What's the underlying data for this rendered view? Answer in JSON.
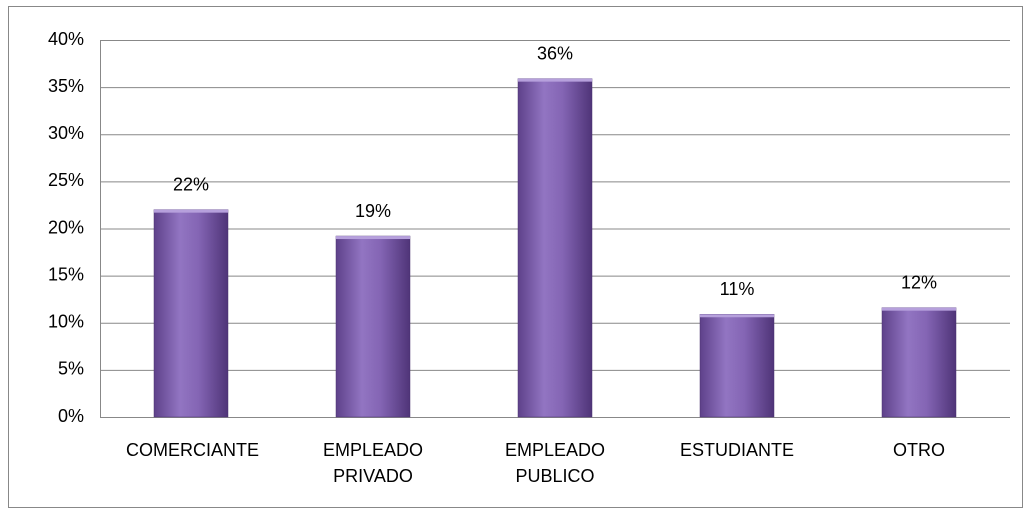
{
  "chart_data": {
    "type": "bar",
    "categories": [
      "COMERCIANTE",
      "EMPLEADO PRIVADO",
      "EMPLEADO PUBLICO",
      "ESTUDIANTE",
      "OTRO"
    ],
    "values": [
      22,
      19.2,
      35.9,
      10.9,
      11.6
    ],
    "value_labels": [
      "22%",
      "19%",
      "36%",
      "11%",
      "12%"
    ],
    "color": "#8064a2",
    "ylim": [
      0,
      40
    ],
    "yticks": [
      {
        "value": 0,
        "label": "0%"
      },
      {
        "value": 5,
        "label": "5%"
      },
      {
        "value": 10,
        "label": "10%"
      },
      {
        "value": 15,
        "label": "15%"
      },
      {
        "value": 20,
        "label": "20%"
      },
      {
        "value": 25,
        "label": "25%"
      },
      {
        "value": 30,
        "label": "30%"
      },
      {
        "value": 35,
        "label": "35%"
      },
      {
        "value": 40,
        "label": "40%"
      }
    ],
    "grid": true
  }
}
